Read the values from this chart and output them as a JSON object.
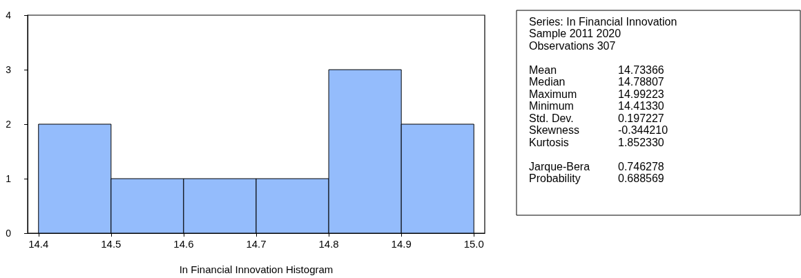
{
  "chart_data": {
    "type": "histogram",
    "xlabel": "In Financial Innovation Histogram",
    "bins": [
      14.4,
      14.5,
      14.6,
      14.7,
      14.8,
      14.9,
      15.0
    ],
    "values": [
      2,
      1,
      1,
      1,
      3,
      2
    ],
    "color": "#94bcfc",
    "xlim": [
      14.385,
      15.015
    ],
    "xticks": [
      14.4,
      14.5,
      14.6,
      14.7,
      14.8,
      14.9,
      {
        "value": 15.0,
        "label": "15.0"
      }
    ],
    "ylim": [
      0,
      4
    ],
    "yticks": [
      0,
      1,
      2,
      3,
      4
    ],
    "grid": false,
    "annotations": [
      "Series: In Financial Innovation",
      "Sample 2011 2020",
      "Observations 307",
      "Mean",
      "14.73366",
      "Median",
      "14.78807",
      "Maximum",
      "14.99223",
      "Minimum",
      "14.41330",
      "Std. Dev.",
      "0.197227",
      "Skewness",
      "-0.344210",
      "Kurtosis",
      "1.852330",
      "Jarque-Bera",
      "0.746278",
      "Probability",
      "0.688569"
    ]
  }
}
